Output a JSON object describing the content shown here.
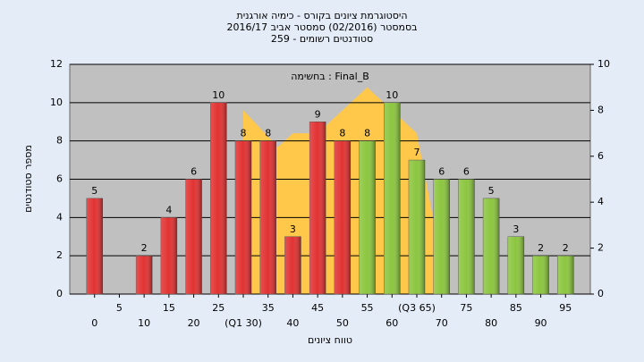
{
  "chart_data": {
    "type": "bar",
    "title": [
      "היסטוגרמת ציונים בקורס - כימיה אורגנית",
      "בסמסטר (02/2016) סמסטר אביב 2016/17",
      "סטודנטים רשומים - 259"
    ],
    "annotation": "בחשימה : Final_B",
    "x_label": "טווח ציונים",
    "y_label": "מספר סטודנטים",
    "x": [
      0,
      5,
      10,
      15,
      20,
      25,
      30,
      35,
      40,
      45,
      50,
      55,
      60,
      65,
      70,
      75,
      80,
      85,
      90,
      95
    ],
    "values": [
      5,
      null,
      2,
      4,
      6,
      10,
      8,
      8,
      3,
      9,
      8,
      8,
      10,
      7,
      6,
      6,
      5,
      3,
      2,
      2
    ],
    "colors": [
      "#e23232",
      "#e23232",
      "#e23232",
      "#e23232",
      "#e23232",
      "#e23232",
      "#e23232",
      "#e23232",
      "#e23232",
      "#e23232",
      "#e23232",
      "#8cc63f",
      "#8cc63f",
      "#8cc63f",
      "#8cc63f",
      "#8cc63f",
      "#8cc63f",
      "#8cc63f",
      "#8cc63f",
      "#8cc63f"
    ],
    "area": {
      "color": "#ffc84a",
      "axis": "y2",
      "x": [
        30,
        37,
        40,
        45,
        55,
        65,
        69
      ],
      "values": [
        8,
        6.4,
        7,
        7,
        9,
        7,
        2.5
      ]
    },
    "xlim": [
      -5,
      100
    ],
    "xticks": [
      0,
      5,
      10,
      15,
      20,
      25,
      {
        "value": 30,
        "label": "(Q1 30)"
      },
      35,
      40,
      45,
      50,
      55,
      60,
      {
        "value": 65,
        "label": "(Q3 65)"
      },
      70,
      75,
      80,
      85,
      90,
      95
    ],
    "ylim": [
      0,
      12
    ],
    "yticks": [
      0,
      2,
      4,
      6,
      8,
      10,
      12
    ],
    "y2lim": [
      0,
      10
    ],
    "y2ticks": [
      0,
      2,
      4,
      6,
      8,
      10
    ],
    "grid": true
  }
}
